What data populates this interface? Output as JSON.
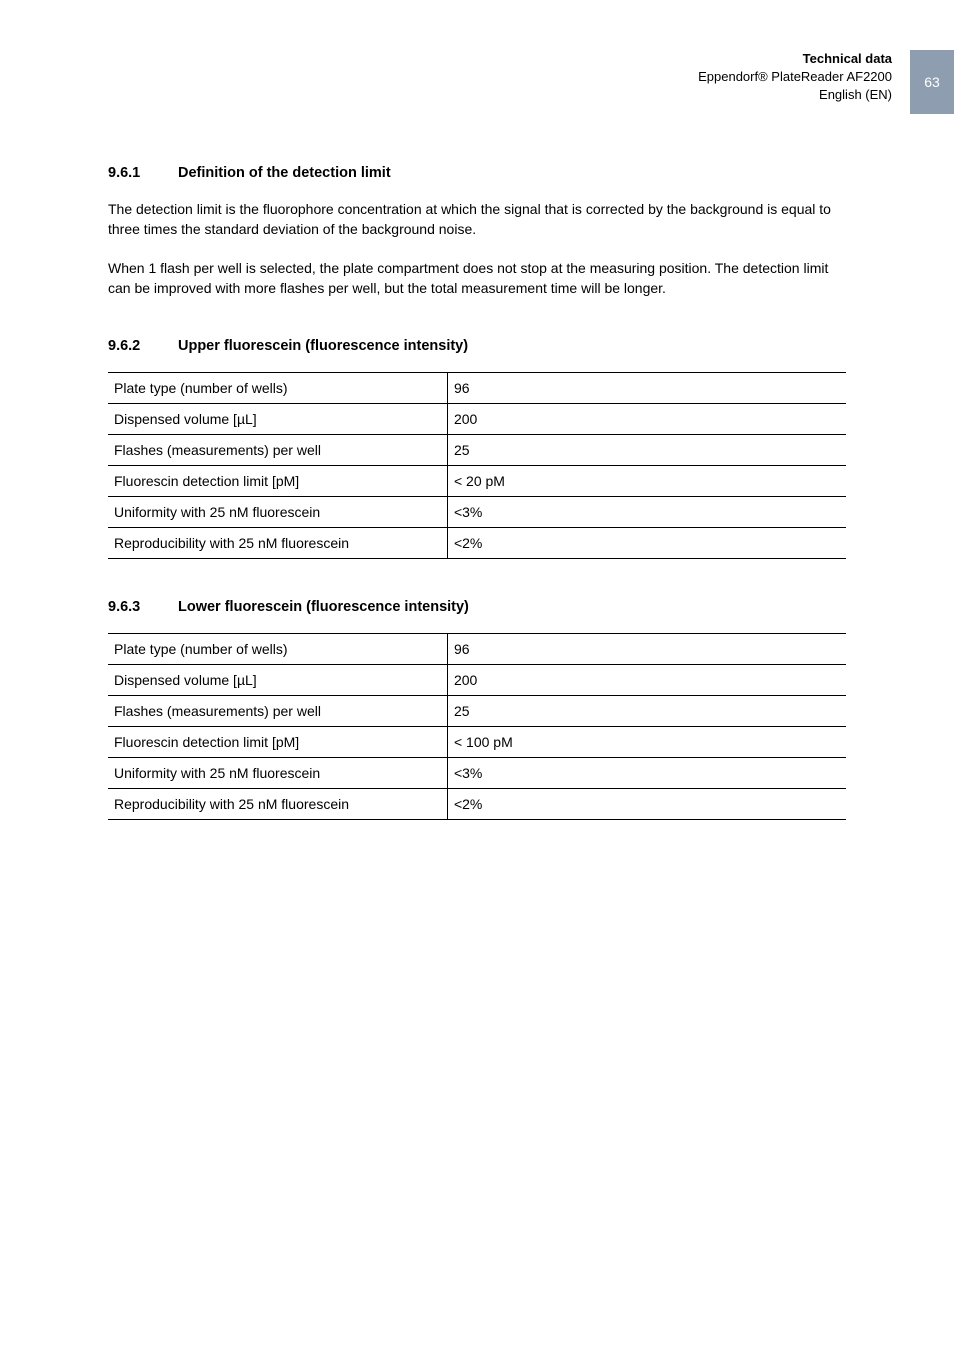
{
  "header": {
    "line1": "Technical data",
    "line2": "Eppendorf® PlateReader AF2200",
    "line3": "English (EN)",
    "page_number": "63"
  },
  "sections": {
    "s1": {
      "number": "9.6.1",
      "title": "Definition of the detection limit",
      "para1": "The detection limit is the fluorophore concentration at which the signal that is corrected by the background is equal to three times the standard deviation of the background noise.",
      "para2": "When 1 flash per well is selected, the plate compartment does not stop at the measuring position. The detection limit can be improved with more flashes per well, but the total measurement time will be longer."
    },
    "s2": {
      "number": "9.6.2",
      "title": "Upper fluorescein (fluorescence intensity)",
      "rows": [
        {
          "label": "Plate type (number of wells)",
          "value": "96"
        },
        {
          "label": "Dispensed volume [µL]",
          "value": "200"
        },
        {
          "label": "Flashes (measurements) per well",
          "value": "25"
        },
        {
          "label": "Fluorescin detection limit [pM]",
          "value": "< 20 pM"
        },
        {
          "label": "Uniformity with 25 nM fluorescein",
          "value": "<3%"
        },
        {
          "label": "Reproducibility with 25 nM fluorescein",
          "value": "<2%"
        }
      ]
    },
    "s3": {
      "number": "9.6.3",
      "title": "Lower fluorescein (fluorescence intensity)",
      "rows": [
        {
          "label": "Plate type (number of wells)",
          "value": "96"
        },
        {
          "label": "Dispensed volume [µL]",
          "value": "200"
        },
        {
          "label": "Flashes (measurements) per well",
          "value": "25"
        },
        {
          "label": "Fluorescin detection limit [pM]",
          "value": "< 100 pM"
        },
        {
          "label": "Uniformity with 25 nM fluorescein",
          "value": "<3%"
        },
        {
          "label": "Reproducibility with 25 nM fluorescein",
          "value": "<2%"
        }
      ]
    }
  }
}
